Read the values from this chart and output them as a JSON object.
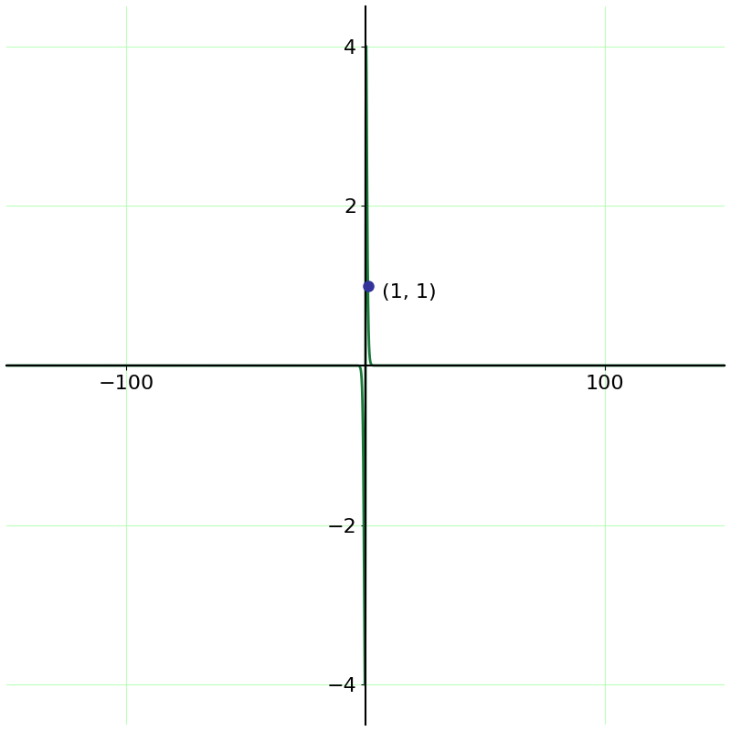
{
  "xlim": [
    -150,
    150
  ],
  "ylim": [
    -4.5,
    4.5
  ],
  "x_ticks": [
    -100,
    100
  ],
  "y_ticks": [
    -4,
    -2,
    2,
    4
  ],
  "curve_color": "#1a7a3a",
  "point_color": "#33339a",
  "point_x": 1,
  "point_y": 1,
  "point_label": "(1, 1)",
  "grid_color": "#bbffbb",
  "axis_color": "#000000",
  "background_color": "#ffffff",
  "font_size_ticks": 16,
  "font_size_label": 16,
  "line_width": 2.0,
  "point_size": 8,
  "x_eps": 0.0001,
  "x_max": 150,
  "n_points": 100000
}
